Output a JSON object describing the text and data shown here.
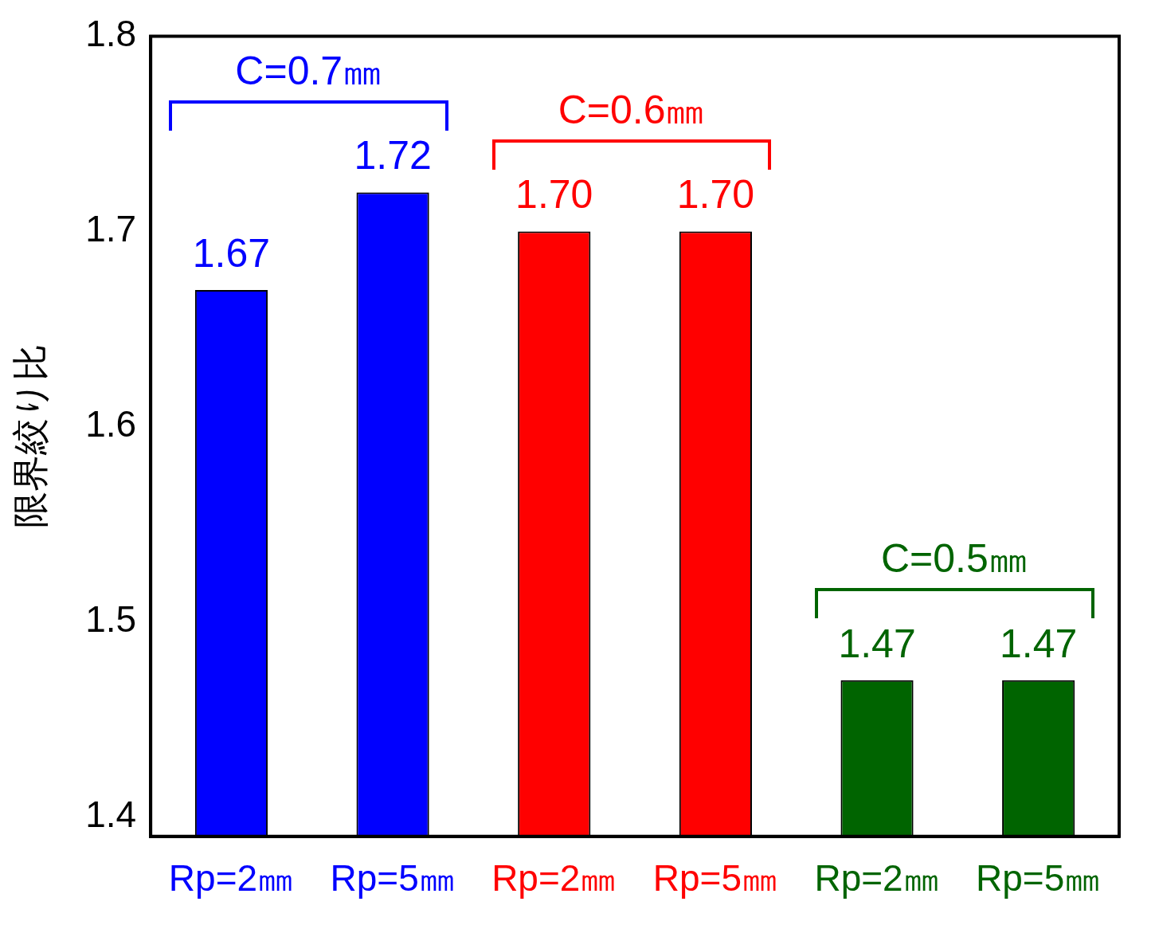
{
  "chart_data": {
    "type": "bar",
    "ylabel": "限界絞り比",
    "categories": [
      "Rp=2㎜",
      "Rp=5㎜",
      "Rp=2㎜",
      "Rp=5㎜",
      "Rp=2㎜",
      "Rp=5㎜"
    ],
    "values": [
      1.67,
      1.72,
      1.7,
      1.7,
      1.47,
      1.47
    ],
    "colors": [
      "#0000ff",
      "#0000ff",
      "#ff0000",
      "#ff0000",
      "#006400",
      "#006400"
    ],
    "value_labels": [
      "1.67",
      "1.72",
      "1.70",
      "1.70",
      "1.47",
      "1.47"
    ],
    "annotations": [
      "C=0.7㎜",
      "C=0.6㎜",
      "C=0.5㎜"
    ],
    "ylim": [
      1.39,
      1.8
    ],
    "yticks": [
      1.4,
      1.5,
      1.6,
      1.7,
      1.8
    ],
    "grid": false,
    "legend": false
  }
}
